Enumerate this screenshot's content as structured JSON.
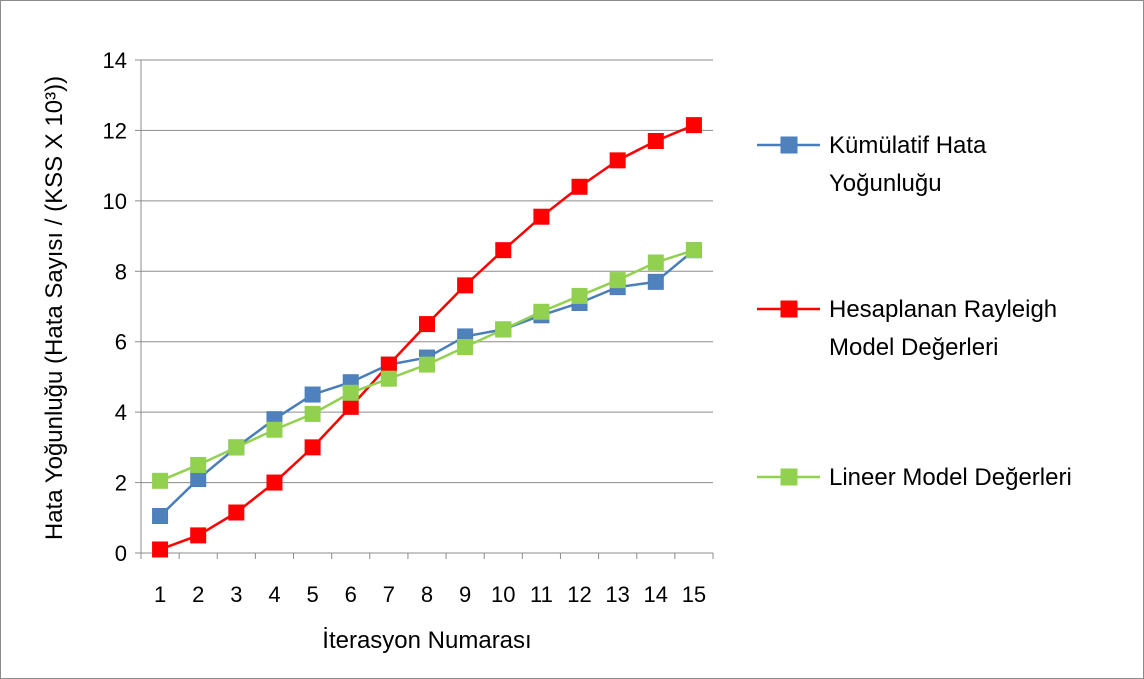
{
  "chart_data": {
    "type": "line",
    "xlabel": "İterasyon Numarası",
    "ylabel": "Hata Yoğunluğu (Hata Sayısı / (KSS X 10³))",
    "ylim": [
      0,
      14
    ],
    "yticks": [
      "0",
      "2",
      "4",
      "6",
      "8",
      "10",
      "12",
      "14"
    ],
    "categories": [
      "1",
      "2",
      "3",
      "4",
      "5",
      "6",
      "7",
      "8",
      "9",
      "10",
      "11",
      "12",
      "13",
      "14",
      "15"
    ],
    "grid": "horizontal",
    "legend_position": "right",
    "series": [
      {
        "name": "Kümülatif Hata Yoğunluğu",
        "name_lines": [
          "Kümülatif Hata",
          "Yoğunluğu"
        ],
        "color": "#4a7ebb",
        "marker_fill": "#4f81bd",
        "values": [
          1.05,
          2.1,
          3.0,
          3.8,
          4.5,
          4.85,
          5.35,
          5.55,
          6.15,
          6.35,
          6.75,
          7.1,
          7.55,
          7.7,
          8.6
        ]
      },
      {
        "name": "Hesaplanan Rayleigh Model Değerleri",
        "name_lines": [
          "Hesaplanan Rayleigh",
          "Model Değerleri"
        ],
        "color": "#ff0000",
        "marker_fill": "#ff0000",
        "values": [
          0.1,
          0.5,
          1.15,
          2.0,
          3.0,
          4.15,
          5.35,
          6.5,
          7.6,
          8.6,
          9.55,
          10.4,
          11.15,
          11.7,
          12.15
        ]
      },
      {
        "name": "Lineer Model Değerleri",
        "name_lines": [
          "Lineer Model Değerleri"
        ],
        "color": "#92d050",
        "marker_fill": "#92d050",
        "values": [
          2.05,
          2.5,
          3.0,
          3.5,
          3.95,
          4.55,
          4.95,
          5.35,
          5.85,
          6.35,
          6.85,
          7.3,
          7.75,
          8.25,
          8.6
        ]
      }
    ]
  }
}
